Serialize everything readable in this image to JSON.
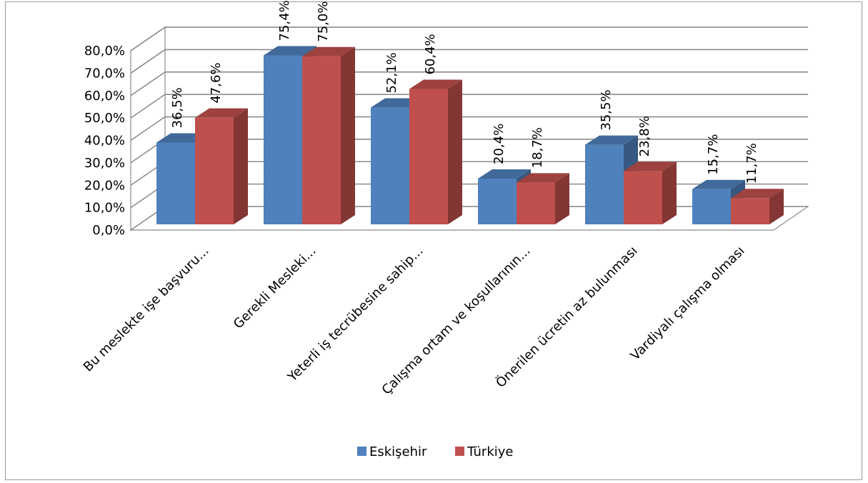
{
  "chart_data": {
    "type": "bar",
    "title": "",
    "xlabel": "",
    "ylabel": "",
    "ylim": [
      0,
      80
    ],
    "yticks": [
      "0,0%",
      "10,0%",
      "20,0%",
      "30,0%",
      "40,0%",
      "50,0%",
      "60,0%",
      "70,0%",
      "80,0%"
    ],
    "grid": true,
    "legend_position": "bottom",
    "categories": [
      "Bu meslekte işe başvuru...",
      "Gerekli Mesleki...",
      "Yeterli iş tecrübesine sahip...",
      "Çalışma ortam ve koşullarının...",
      "Önerilen ücretin az bulunması",
      "Vardiyalı çalışma olması"
    ],
    "series": [
      {
        "name": "Eskişehir",
        "color": "#4f81bd",
        "values": [
          36.5,
          75.4,
          52.1,
          20.4,
          35.5,
          15.7
        ],
        "labels": [
          "36,5%",
          "75,4%",
          "52,1%",
          "20,4%",
          "35,5%",
          "15,7%"
        ]
      },
      {
        "name": "Türkiye",
        "color": "#c0504d",
        "values": [
          47.6,
          75.0,
          60.4,
          18.7,
          23.8,
          11.7
        ],
        "labels": [
          "47,6%",
          "75,0%",
          "60,4%",
          "18,7%",
          "23,8%",
          "11,7%"
        ]
      }
    ]
  }
}
